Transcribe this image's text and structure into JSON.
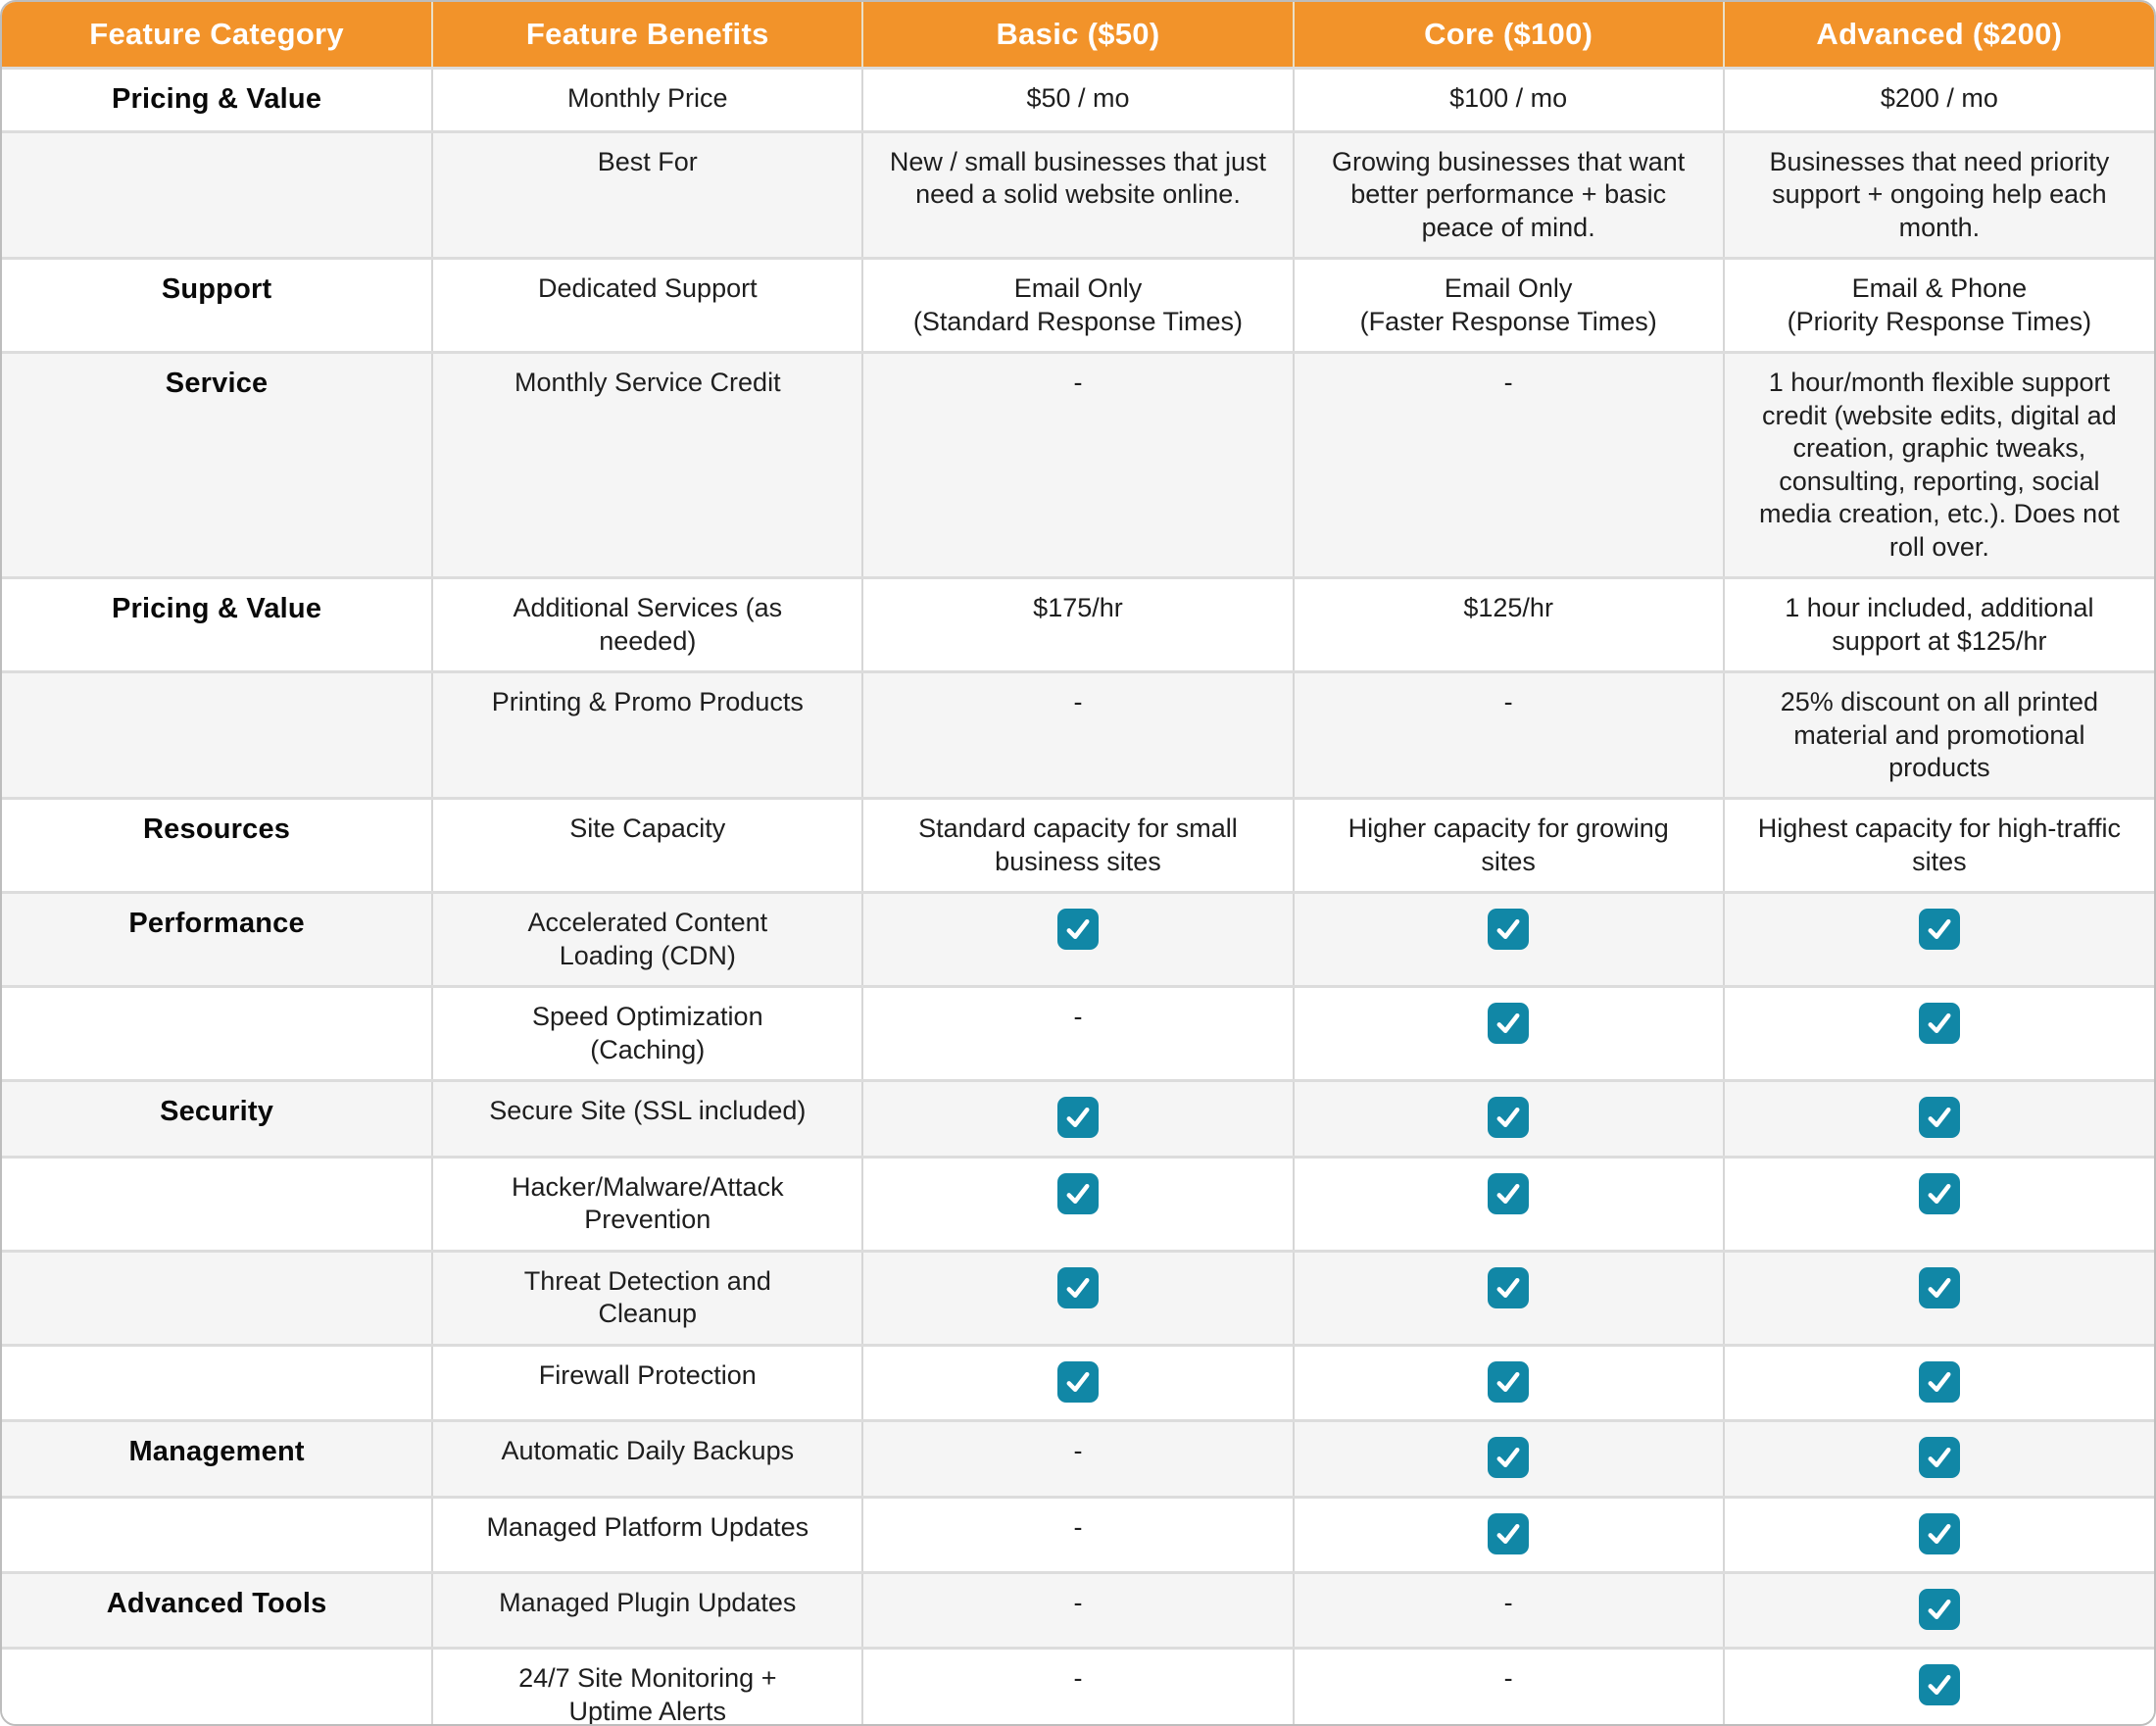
{
  "chart_data": {
    "type": "table",
    "check_token": "CHECK",
    "none_token": "-",
    "columns": [
      "Feature Category",
      "Feature Benefits",
      "Basic ($50)",
      "Core ($100)",
      "Advanced ($200)"
    ],
    "rows": [
      {
        "category": "Pricing & Value",
        "benefit": "Monthly Price",
        "basic": "$50 / mo",
        "core": "$100 / mo",
        "advanced": "$200 / mo"
      },
      {
        "category": "",
        "benefit": "Best For",
        "basic": "New / small businesses that just need a solid website online.",
        "core": "Growing businesses that want better performance + basic peace of mind.",
        "advanced": "Businesses that need priority support + ongoing help each month."
      },
      {
        "category": "Support",
        "benefit": "Dedicated Support",
        "basic": "Email Only\n(Standard Response Times)",
        "core": "Email Only\n(Faster Response Times)",
        "advanced": "Email & Phone\n(Priority Response Times)"
      },
      {
        "category": "Service",
        "benefit": "Monthly Service Credit",
        "basic": "-",
        "core": "-",
        "advanced": "1 hour/month flexible support credit (website edits, digital ad creation, graphic tweaks, consulting, reporting, social media creation, etc.). Does not roll over."
      },
      {
        "category": "Pricing & Value",
        "benefit": "Additional Services (as\nneeded)",
        "basic": "$175/hr",
        "core": "$125/hr",
        "advanced": "1 hour included, additional support at $125/hr"
      },
      {
        "category": "",
        "benefit": "Printing & Promo Products",
        "basic": "-",
        "core": "-",
        "advanced": "25% discount on all printed material and promotional products"
      },
      {
        "category": "Resources",
        "benefit": "Site Capacity",
        "basic": "Standard capacity for small business sites",
        "core": "Higher capacity for growing sites",
        "advanced": "Highest capacity for high-traffic sites"
      },
      {
        "category": "Performance",
        "benefit": "Accelerated Content\nLoading (CDN)",
        "basic": "CHECK",
        "core": "CHECK",
        "advanced": "CHECK"
      },
      {
        "category": "",
        "benefit": "Speed Optimization\n(Caching)",
        "basic": "-",
        "core": "CHECK",
        "advanced": "CHECK"
      },
      {
        "category": "Security",
        "benefit": "Secure Site (SSL included)",
        "basic": "CHECK",
        "core": "CHECK",
        "advanced": "CHECK"
      },
      {
        "category": "",
        "benefit": "Hacker/Malware/Attack\nPrevention",
        "basic": "CHECK",
        "core": "CHECK",
        "advanced": "CHECK"
      },
      {
        "category": "",
        "benefit": "Threat Detection and\nCleanup",
        "basic": "CHECK",
        "core": "CHECK",
        "advanced": "CHECK"
      },
      {
        "category": "",
        "benefit": "Firewall Protection",
        "basic": "CHECK",
        "core": "CHECK",
        "advanced": "CHECK"
      },
      {
        "category": "Management",
        "benefit": "Automatic Daily Backups",
        "basic": "-",
        "core": "CHECK",
        "advanced": "CHECK"
      },
      {
        "category": "",
        "benefit": "Managed Platform Updates",
        "basic": "-",
        "core": "CHECK",
        "advanced": "CHECK"
      },
      {
        "category": "Advanced Tools",
        "benefit": "Managed Plugin Updates",
        "basic": "-",
        "core": "-",
        "advanced": "CHECK"
      },
      {
        "category": "",
        "benefit": "24/7 Site Monitoring +\nUptime Alerts",
        "basic": "-",
        "core": "-",
        "advanced": "CHECK"
      }
    ]
  },
  "style": {
    "header_bg": "#F2932A",
    "header_text": "#FFFFFF",
    "row_bg": "#FFFFFF",
    "row_alt_bg": "#F5F5F5",
    "check_color": "#1187A6",
    "text_color": "#1E1E1E"
  },
  "icons": {
    "check": "checkbox-checked-icon"
  }
}
